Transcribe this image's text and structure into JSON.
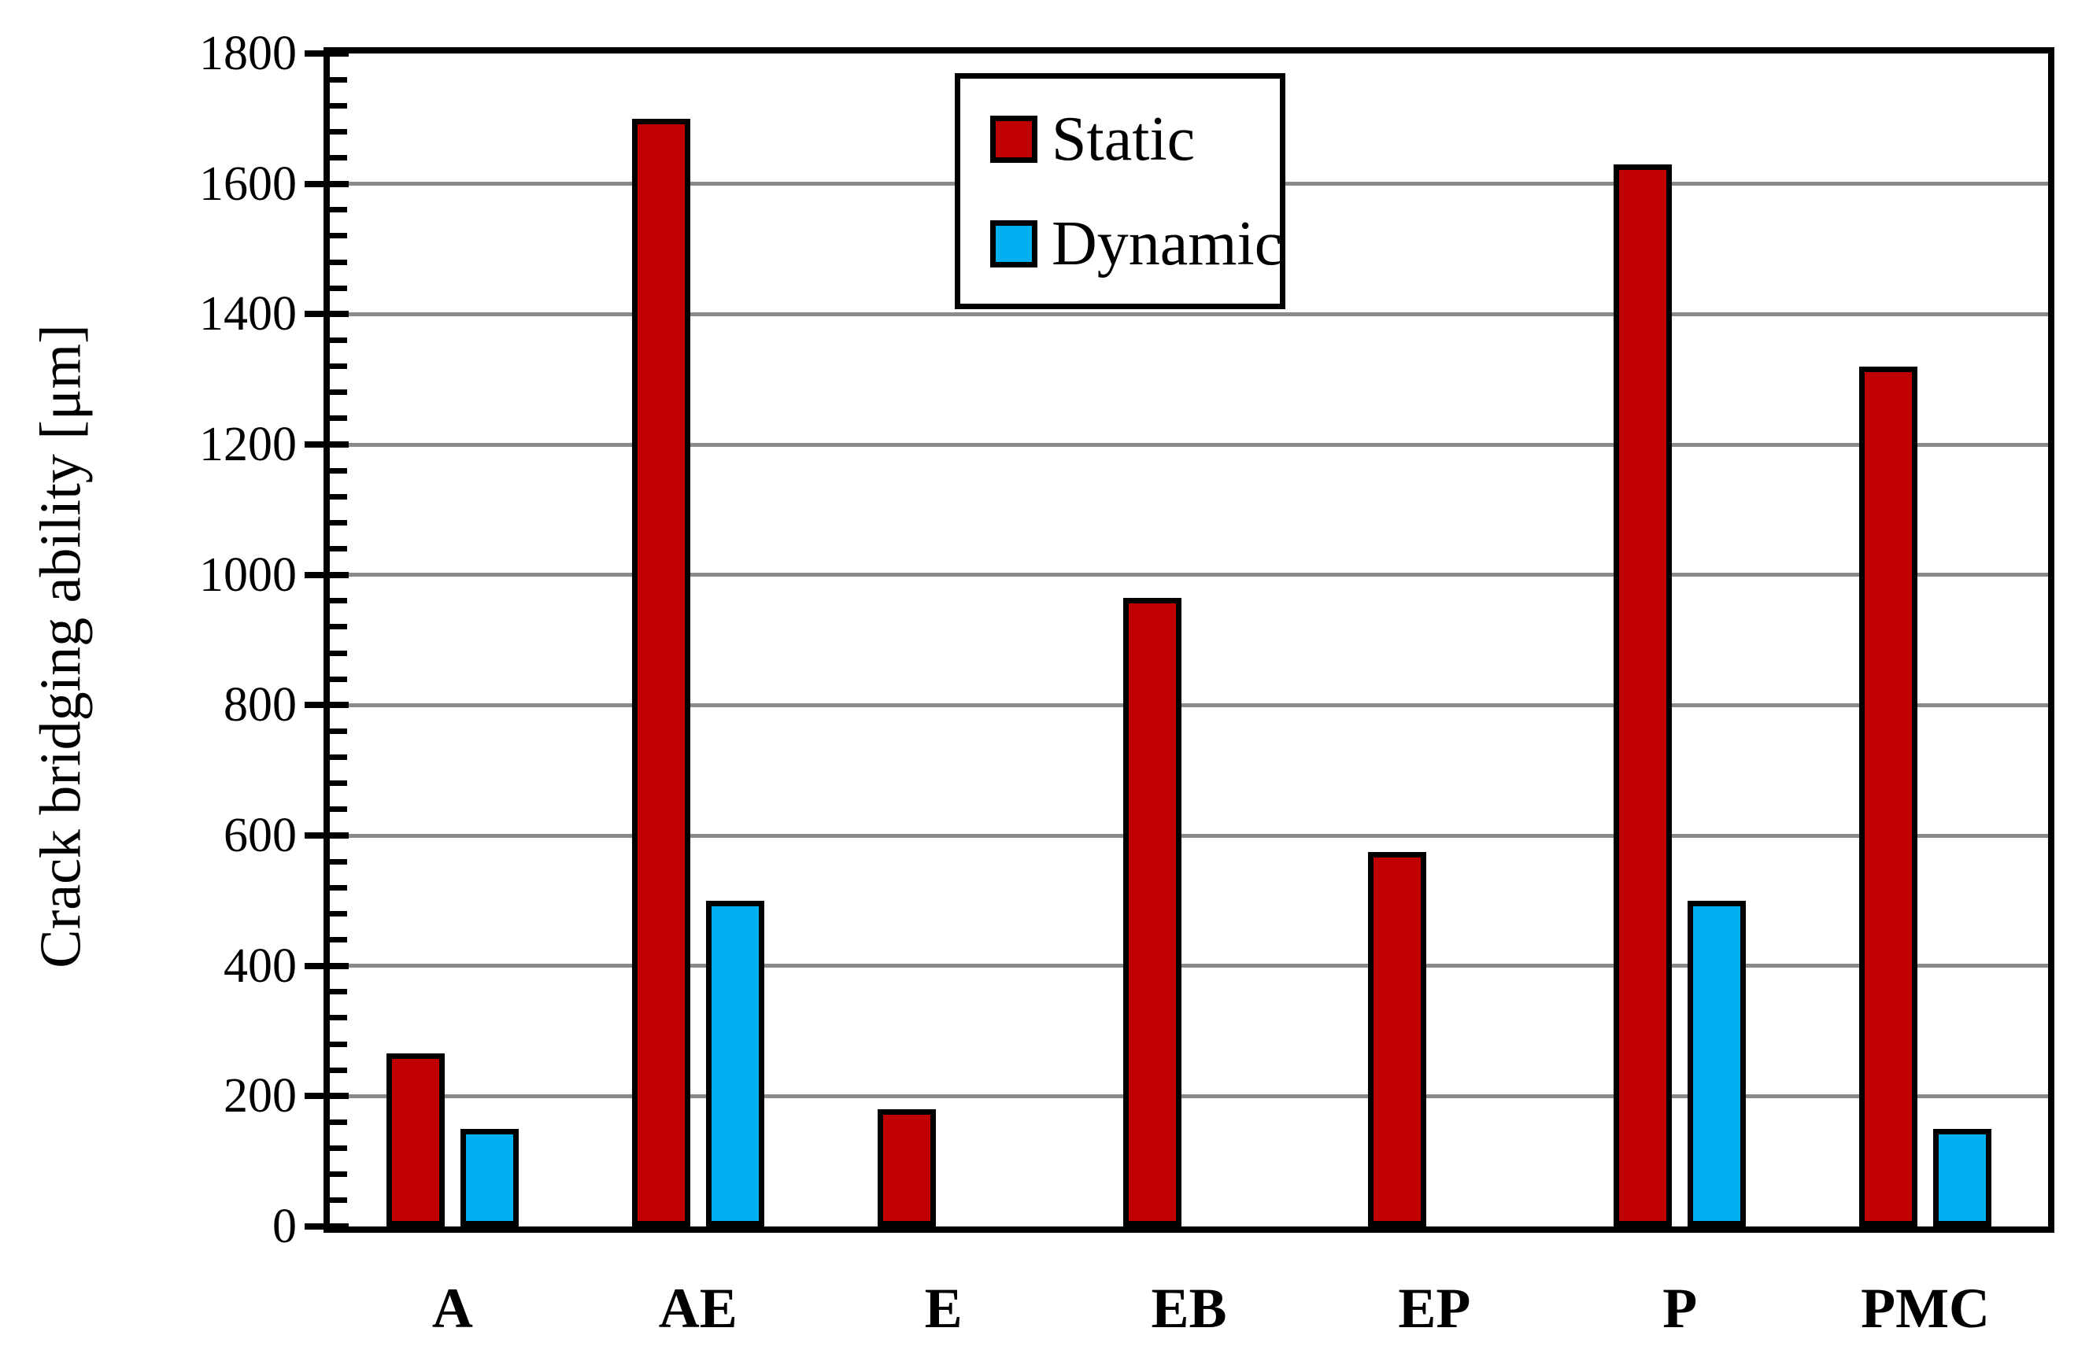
{
  "y_axis": {
    "title": "Crack bridging ability [μm]",
    "tick_labels": [
      "0",
      "200",
      "400",
      "600",
      "800",
      "1000",
      "1200",
      "1400",
      "1600",
      "1800"
    ]
  },
  "x_axis": {
    "category_labels": [
      "A",
      "AE",
      "E",
      "EB",
      "EP",
      "P",
      "PMC"
    ]
  },
  "legend": {
    "items": [
      {
        "label": "Static",
        "color": "#C00000"
      },
      {
        "label": "Dynamic",
        "color": "#00B0F0"
      }
    ]
  },
  "colors": {
    "static_bar": "#C00000",
    "dynamic_bar": "#00B0F0",
    "gridline": "#8A8A8A",
    "axis": "#000000"
  },
  "chart_data": {
    "type": "bar",
    "title": "",
    "xlabel": "",
    "ylabel": "Crack bridging ability [μm]",
    "ylim": [
      0,
      1800
    ],
    "y_major_tick": 200,
    "y_minor_tick": 40,
    "grid": true,
    "legend_position": "inside-top-center",
    "categories": [
      "A",
      "AE",
      "E",
      "EB",
      "EP",
      "P",
      "PMC"
    ],
    "series": [
      {
        "name": "Static",
        "color": "#C00000",
        "values": [
          265,
          1700,
          180,
          965,
          575,
          1630,
          1320
        ]
      },
      {
        "name": "Dynamic",
        "color": "#00B0F0",
        "values": [
          150,
          500,
          0,
          0,
          0,
          500,
          150
        ]
      }
    ]
  }
}
